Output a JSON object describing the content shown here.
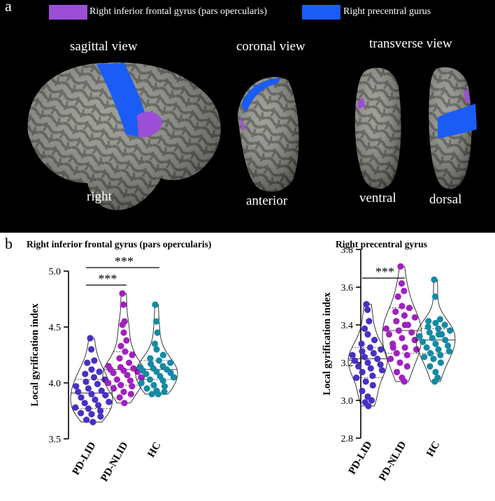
{
  "panel_a": {
    "letter": "a",
    "legend": [
      {
        "label": "Right inferior frontal gyrus (pars opercularis)",
        "color": "#9b4fd6"
      },
      {
        "label": "Right precentral gurus",
        "color": "#1a5cf5"
      }
    ],
    "views": {
      "sagittal": "sagittal view",
      "coronal": "coronal view",
      "transverse": "transverse view"
    },
    "orientations": {
      "right": "right",
      "anterior": "anterior",
      "ventral": "ventral",
      "dorsal": "dorsal"
    }
  },
  "panel_b": {
    "letter": "b",
    "colors": {
      "PD-LID": "#4a2fc4",
      "PD-NLID": "#a020c0",
      "HC": "#158aa3"
    }
  },
  "chart_data": [
    {
      "type": "violin-scatter",
      "title": "Right inferior frontal gyrus (pars opercularis)",
      "ylabel": "Local gyrification index",
      "ylim": [
        3.5,
        5.0
      ],
      "yticks": [
        3.5,
        4.0,
        4.5,
        5.0
      ],
      "ytick_labels": [
        "3.5",
        "4.0",
        "4.5",
        "5.0"
      ],
      "categories": [
        "PD-LID",
        "PD-NLID",
        "HC"
      ],
      "significance": [
        {
          "from": "PD-LID",
          "to": "PD-NLID",
          "label": "***"
        },
        {
          "from": "PD-LID",
          "to": "HC",
          "label": "***"
        }
      ],
      "series": [
        {
          "name": "PD-LID",
          "median": 3.91,
          "q1": 3.77,
          "q3": 4.03,
          "values": [
            4.4,
            4.3,
            4.2,
            4.18,
            4.12,
            4.1,
            4.08,
            4.05,
            4.03,
            4.01,
            3.99,
            3.97,
            3.95,
            3.93,
            3.92,
            3.9,
            3.89,
            3.87,
            3.85,
            3.83,
            3.82,
            3.8,
            3.78,
            3.77,
            3.75,
            3.73,
            3.72,
            3.7,
            3.67,
            3.65
          ]
        },
        {
          "name": "PD-NLID",
          "median": 4.12,
          "q1": 3.98,
          "q3": 4.28,
          "values": [
            4.8,
            4.7,
            4.55,
            4.52,
            4.45,
            4.38,
            4.33,
            4.28,
            4.25,
            4.22,
            4.18,
            4.15,
            4.14,
            4.13,
            4.12,
            4.11,
            4.1,
            4.09,
            4.07,
            4.05,
            4.03,
            4.02,
            4.0,
            3.98,
            3.97,
            3.95,
            3.92,
            3.9,
            3.87,
            3.82
          ]
        },
        {
          "name": "HC",
          "median": 4.12,
          "q1": 4.03,
          "q3": 4.2,
          "values": [
            4.7,
            4.55,
            4.45,
            4.35,
            4.3,
            4.25,
            4.22,
            4.2,
            4.18,
            4.17,
            4.15,
            4.14,
            4.13,
            4.12,
            4.11,
            4.1,
            4.09,
            4.08,
            4.06,
            4.05,
            4.03,
            4.02,
            4.0,
            3.98,
            3.97,
            3.95,
            3.93,
            3.92,
            3.9,
            3.9
          ]
        }
      ]
    },
    {
      "type": "violin-scatter",
      "title": "Right precentral gyrus",
      "ylabel": "Local gyrification index",
      "ylim": [
        2.8,
        3.8
      ],
      "yticks": [
        2.8,
        3.0,
        3.2,
        3.4,
        3.6,
        3.8
      ],
      "ytick_labels": [
        "2.8",
        "3.0",
        "3.2",
        "3.4",
        "3.6",
        "3.8"
      ],
      "categories": [
        "PD-LID",
        "PD-NLID",
        "HC"
      ],
      "significance": [
        {
          "from": "PD-LID",
          "to": "PD-NLID",
          "label": "***"
        }
      ],
      "series": [
        {
          "name": "PD-LID",
          "median": 3.22,
          "q1": 3.12,
          "q3": 3.28,
          "values": [
            3.51,
            3.48,
            3.42,
            3.38,
            3.35,
            3.32,
            3.3,
            3.28,
            3.27,
            3.26,
            3.25,
            3.24,
            3.23,
            3.22,
            3.21,
            3.2,
            3.19,
            3.18,
            3.17,
            3.16,
            3.15,
            3.13,
            3.12,
            3.1,
            3.08,
            3.05,
            3.02,
            3.0,
            2.99,
            2.97
          ]
        },
        {
          "name": "PD-NLID",
          "median": 3.37,
          "q1": 3.25,
          "q3": 3.49,
          "values": [
            3.71,
            3.62,
            3.58,
            3.55,
            3.5,
            3.49,
            3.47,
            3.45,
            3.44,
            3.42,
            3.4,
            3.38,
            3.37,
            3.36,
            3.35,
            3.33,
            3.32,
            3.3,
            3.28,
            3.27,
            3.25,
            3.24,
            3.22,
            3.2,
            3.18,
            3.15,
            3.12,
            3.1,
            3.28,
            3.4
          ]
        },
        {
          "name": "HC",
          "median": 3.32,
          "q1": 3.25,
          "q3": 3.38,
          "values": [
            3.64,
            3.55,
            3.43,
            3.42,
            3.41,
            3.4,
            3.39,
            3.38,
            3.37,
            3.36,
            3.35,
            3.34,
            3.33,
            3.32,
            3.31,
            3.3,
            3.29,
            3.28,
            3.27,
            3.26,
            3.25,
            3.24,
            3.23,
            3.22,
            3.2,
            3.18,
            3.15,
            3.12,
            3.1,
            3.35
          ]
        }
      ]
    }
  ]
}
